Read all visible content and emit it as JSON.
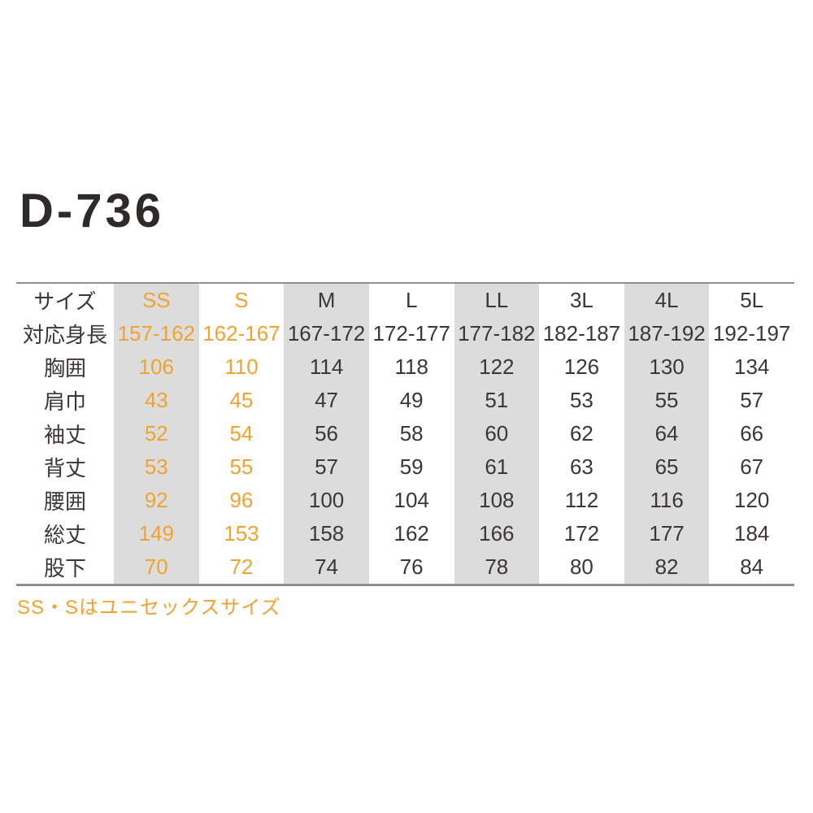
{
  "title": "D-736",
  "footnote": "SS・Sはユニセックスサイズ",
  "colors": {
    "accent_orange": "#F0A330",
    "shaded_column_bg": "#DCDCDC",
    "text_dark": "#3B3735",
    "rule_gray": "#8F8F8F"
  },
  "chart_data": {
    "type": "table",
    "title": "D-736",
    "corner_label": "サイズ",
    "columns": [
      "SS",
      "S",
      "M",
      "L",
      "LL",
      "3L",
      "4L",
      "5L"
    ],
    "highlighted_columns": [
      "SS",
      "S"
    ],
    "shaded_columns": [
      "SS",
      "M",
      "LL",
      "4L"
    ],
    "rows": [
      {
        "label": "対応身長",
        "values": [
          "157-162",
          "162-167",
          "167-172",
          "172-177",
          "177-182",
          "182-187",
          "187-192",
          "192-197"
        ]
      },
      {
        "label": "胸囲",
        "values": [
          "106",
          "110",
          "114",
          "118",
          "122",
          "126",
          "130",
          "134"
        ]
      },
      {
        "label": "肩巾",
        "values": [
          "43",
          "45",
          "47",
          "49",
          "51",
          "53",
          "55",
          "57"
        ]
      },
      {
        "label": "袖丈",
        "values": [
          "52",
          "54",
          "56",
          "58",
          "60",
          "62",
          "64",
          "66"
        ]
      },
      {
        "label": "背丈",
        "values": [
          "53",
          "55",
          "57",
          "59",
          "61",
          "63",
          "65",
          "67"
        ]
      },
      {
        "label": "腰囲",
        "values": [
          "92",
          "96",
          "100",
          "104",
          "108",
          "112",
          "116",
          "120"
        ]
      },
      {
        "label": "総丈",
        "values": [
          "149",
          "153",
          "158",
          "162",
          "166",
          "172",
          "177",
          "184"
        ]
      },
      {
        "label": "股下",
        "values": [
          "70",
          "72",
          "74",
          "76",
          "78",
          "80",
          "82",
          "84"
        ]
      }
    ],
    "footnote": "SS・Sはユニセックスサイズ",
    "layout": {
      "grid": false,
      "legend": "none"
    }
  }
}
